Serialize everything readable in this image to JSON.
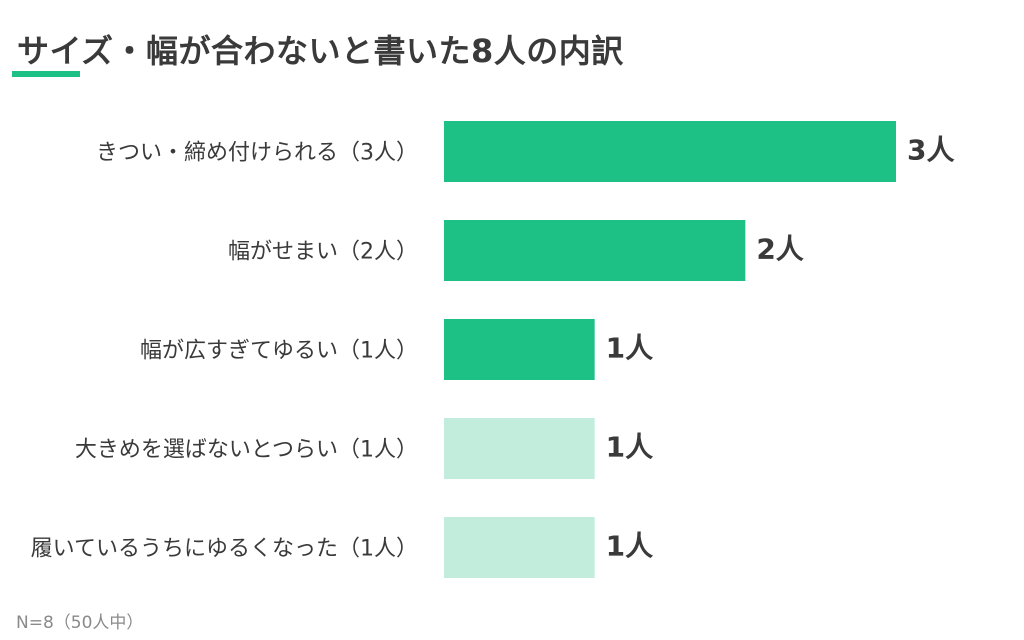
{
  "title": "サイズ・幅が合わないと書いた8人の内訳",
  "footnote": "N=8（50人中）",
  "colors": {
    "primary": "#1dc186",
    "light": "#c2eddc",
    "accent": "#1dc186"
  },
  "chart_data": {
    "type": "bar",
    "orientation": "horizontal",
    "categories": [
      "きつい・締め付けられる（3人）",
      "幅がせまい（2人）",
      "幅が広すぎてゆるい（1人）",
      "大きめを選ばないとつらい（1人）",
      "履いているうちにゆるくなった（1人）"
    ],
    "values": [
      3,
      2,
      1,
      1,
      1
    ],
    "value_labels": [
      "3人",
      "2人",
      "1人",
      "1人",
      "1人"
    ],
    "bar_color_tone": [
      "primary",
      "primary",
      "primary",
      "light",
      "light"
    ],
    "xlim": [
      0,
      3
    ],
    "grid": false,
    "legend": "none"
  }
}
